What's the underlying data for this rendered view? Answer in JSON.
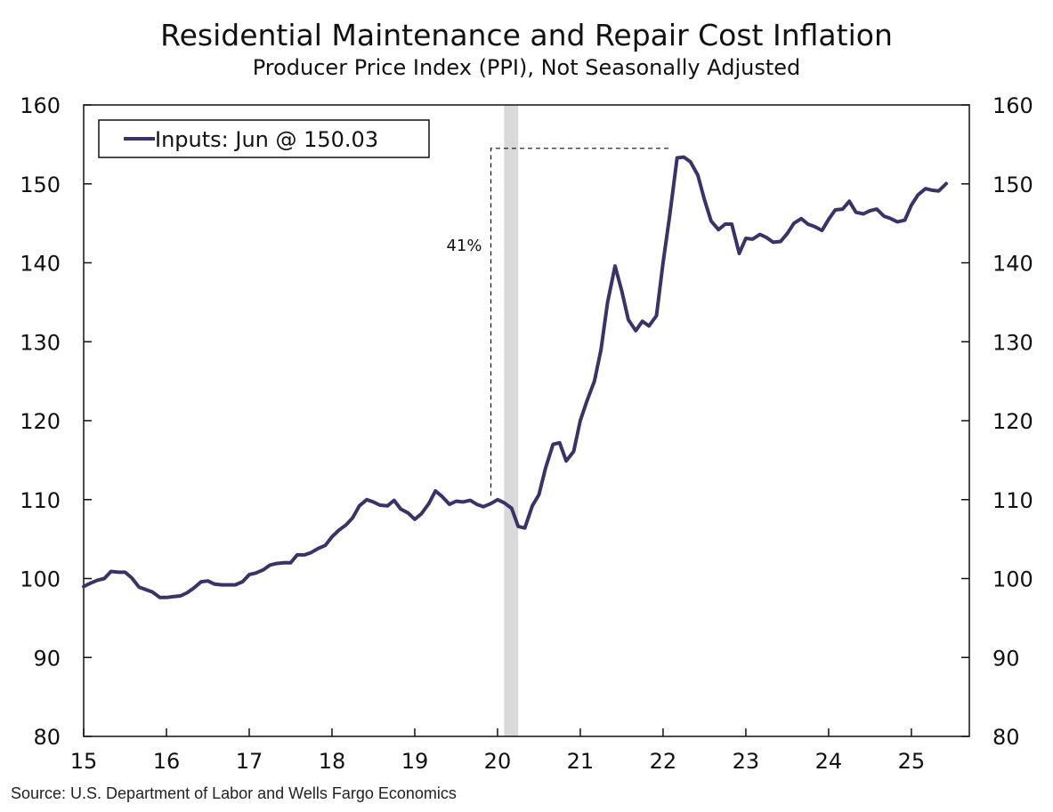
{
  "chart_data": {
    "type": "line",
    "title": "Residential Maintenance and Repair Cost Inflation",
    "subtitle": "Producer Price Index (PPI), Not Seasonally Adjusted",
    "source": "Source: U.S. Department of Labor and Wells Fargo Economics",
    "xlim": [
      2015,
      2025.7
    ],
    "ylim": [
      80,
      160
    ],
    "y_ticks": [
      80,
      90,
      100,
      110,
      120,
      130,
      140,
      150,
      160
    ],
    "x_ticks": [
      2015,
      2016,
      2017,
      2018,
      2019,
      2020,
      2021,
      2022,
      2023,
      2024,
      2025
    ],
    "x_tick_labels": [
      "15",
      "16",
      "17",
      "18",
      "19",
      "20",
      "21",
      "22",
      "23",
      "24",
      "25"
    ],
    "legend": {
      "label": "Inputs: Jun @ 150.03",
      "placement": "top-left"
    },
    "recession_shading": {
      "start": 2020.08,
      "end": 2020.25,
      "color": "#d9d9d9"
    },
    "annotation": {
      "text": "41%",
      "x_start": 2019.92,
      "x_end": 2022.1,
      "y_low": 110.5,
      "y_high": 154.5
    },
    "series": [
      {
        "name": "Inputs",
        "color": "#3b3268",
        "points": [
          [
            2015.0,
            99.0
          ],
          [
            2015.08,
            99.4
          ],
          [
            2015.17,
            99.8
          ],
          [
            2015.25,
            100.0
          ],
          [
            2015.33,
            100.9
          ],
          [
            2015.42,
            100.8
          ],
          [
            2015.5,
            100.8
          ],
          [
            2015.58,
            100.1
          ],
          [
            2015.67,
            98.9
          ],
          [
            2015.75,
            98.6
          ],
          [
            2015.83,
            98.3
          ],
          [
            2015.92,
            97.6
          ],
          [
            2016.0,
            97.6
          ],
          [
            2016.08,
            97.7
          ],
          [
            2016.17,
            97.8
          ],
          [
            2016.25,
            98.2
          ],
          [
            2016.33,
            98.8
          ],
          [
            2016.42,
            99.6
          ],
          [
            2016.5,
            99.7
          ],
          [
            2016.58,
            99.3
          ],
          [
            2016.67,
            99.2
          ],
          [
            2016.75,
            99.2
          ],
          [
            2016.83,
            99.2
          ],
          [
            2016.92,
            99.6
          ],
          [
            2017.0,
            100.5
          ],
          [
            2017.08,
            100.7
          ],
          [
            2017.17,
            101.1
          ],
          [
            2017.25,
            101.7
          ],
          [
            2017.33,
            101.9
          ],
          [
            2017.42,
            102.0
          ],
          [
            2017.5,
            102.0
          ],
          [
            2017.58,
            103.0
          ],
          [
            2017.67,
            103.0
          ],
          [
            2017.75,
            103.3
          ],
          [
            2017.83,
            103.8
          ],
          [
            2017.92,
            104.2
          ],
          [
            2018.0,
            105.3
          ],
          [
            2018.08,
            106.1
          ],
          [
            2018.17,
            106.8
          ],
          [
            2018.25,
            107.7
          ],
          [
            2018.33,
            109.2
          ],
          [
            2018.42,
            110.0
          ],
          [
            2018.5,
            109.7
          ],
          [
            2018.58,
            109.3
          ],
          [
            2018.67,
            109.2
          ],
          [
            2018.75,
            109.9
          ],
          [
            2018.83,
            108.8
          ],
          [
            2018.92,
            108.3
          ],
          [
            2019.0,
            107.5
          ],
          [
            2019.08,
            108.2
          ],
          [
            2019.17,
            109.5
          ],
          [
            2019.25,
            111.1
          ],
          [
            2019.33,
            110.4
          ],
          [
            2019.42,
            109.4
          ],
          [
            2019.5,
            109.8
          ],
          [
            2019.58,
            109.7
          ],
          [
            2019.67,
            109.9
          ],
          [
            2019.75,
            109.4
          ],
          [
            2019.83,
            109.1
          ],
          [
            2019.92,
            109.5
          ],
          [
            2020.0,
            110.0
          ],
          [
            2020.08,
            109.6
          ],
          [
            2020.17,
            108.9
          ],
          [
            2020.25,
            106.6
          ],
          [
            2020.33,
            106.4
          ],
          [
            2020.42,
            109.2
          ],
          [
            2020.5,
            110.6
          ],
          [
            2020.58,
            114.0
          ],
          [
            2020.67,
            117.0
          ],
          [
            2020.75,
            117.2
          ],
          [
            2020.83,
            114.9
          ],
          [
            2020.92,
            116.1
          ],
          [
            2021.0,
            120.0
          ],
          [
            2021.08,
            122.5
          ],
          [
            2021.17,
            125.0
          ],
          [
            2021.25,
            129.0
          ],
          [
            2021.33,
            135.0
          ],
          [
            2021.42,
            139.6
          ],
          [
            2021.5,
            136.5
          ],
          [
            2021.58,
            132.8
          ],
          [
            2021.67,
            131.4
          ],
          [
            2021.75,
            132.6
          ],
          [
            2021.83,
            132.0
          ],
          [
            2021.92,
            133.3
          ],
          [
            2022.0,
            140.0
          ],
          [
            2022.08,
            146.0
          ],
          [
            2022.17,
            153.3
          ],
          [
            2022.25,
            153.4
          ],
          [
            2022.33,
            152.8
          ],
          [
            2022.42,
            151.1
          ],
          [
            2022.5,
            148.0
          ],
          [
            2022.58,
            145.3
          ],
          [
            2022.67,
            144.2
          ],
          [
            2022.75,
            144.9
          ],
          [
            2022.83,
            144.9
          ],
          [
            2022.92,
            141.2
          ],
          [
            2023.0,
            143.1
          ],
          [
            2023.08,
            143.0
          ],
          [
            2023.17,
            143.6
          ],
          [
            2023.25,
            143.2
          ],
          [
            2023.33,
            142.6
          ],
          [
            2023.42,
            142.7
          ],
          [
            2023.5,
            143.7
          ],
          [
            2023.58,
            145.0
          ],
          [
            2023.67,
            145.6
          ],
          [
            2023.75,
            144.9
          ],
          [
            2023.83,
            144.6
          ],
          [
            2023.92,
            144.1
          ],
          [
            2024.0,
            145.5
          ],
          [
            2024.08,
            146.7
          ],
          [
            2024.17,
            146.8
          ],
          [
            2024.25,
            147.8
          ],
          [
            2024.33,
            146.4
          ],
          [
            2024.42,
            146.2
          ],
          [
            2024.5,
            146.6
          ],
          [
            2024.58,
            146.8
          ],
          [
            2024.67,
            145.9
          ],
          [
            2024.75,
            145.6
          ],
          [
            2024.83,
            145.2
          ],
          [
            2024.92,
            145.4
          ],
          [
            2025.0,
            147.3
          ],
          [
            2025.08,
            148.6
          ],
          [
            2025.17,
            149.4
          ],
          [
            2025.25,
            149.2
          ],
          [
            2025.33,
            149.1
          ],
          [
            2025.42,
            150.03
          ]
        ]
      }
    ]
  }
}
